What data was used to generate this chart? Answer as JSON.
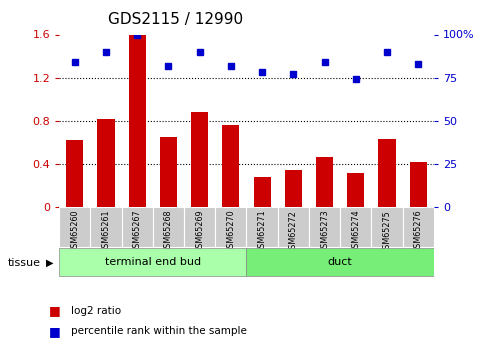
{
  "title": "GDS2115 / 12990",
  "samples": [
    "GSM65260",
    "GSM65261",
    "GSM65267",
    "GSM65268",
    "GSM65269",
    "GSM65270",
    "GSM65271",
    "GSM65272",
    "GSM65273",
    "GSM65274",
    "GSM65275",
    "GSM65276"
  ],
  "log2_ratio": [
    0.62,
    0.82,
    1.6,
    0.65,
    0.88,
    0.76,
    0.28,
    0.34,
    0.46,
    0.32,
    0.63,
    0.42
  ],
  "percentile_rank": [
    84,
    90,
    100,
    82,
    90,
    82,
    78,
    77,
    84,
    74,
    90,
    83
  ],
  "bar_color": "#cc0000",
  "dot_color": "#0000cc",
  "ylim_left": [
    0,
    1.6
  ],
  "ylim_right": [
    0,
    100
  ],
  "yticks_left": [
    0,
    0.4,
    0.8,
    1.2,
    1.6
  ],
  "ytick_labels_left": [
    "0",
    "0.4",
    "0.8",
    "1.2",
    "1.6"
  ],
  "yticks_right": [
    0,
    25,
    50,
    75,
    100
  ],
  "ytick_labels_right": [
    "0",
    "25",
    "50",
    "75",
    "100%"
  ],
  "groups": [
    {
      "label": "terminal end bud",
      "start": 0,
      "end": 6,
      "color": "#aaffaa"
    },
    {
      "label": "duct",
      "start": 6,
      "end": 12,
      "color": "#77ee77"
    }
  ],
  "tissue_label": "tissue",
  "legend_items": [
    {
      "color": "#cc0000",
      "label": "log2 ratio"
    },
    {
      "color": "#0000cc",
      "label": "percentile rank within the sample"
    }
  ],
  "tick_area_color": "#cccccc",
  "dotted_gridlines": [
    0.4,
    0.8,
    1.2
  ]
}
